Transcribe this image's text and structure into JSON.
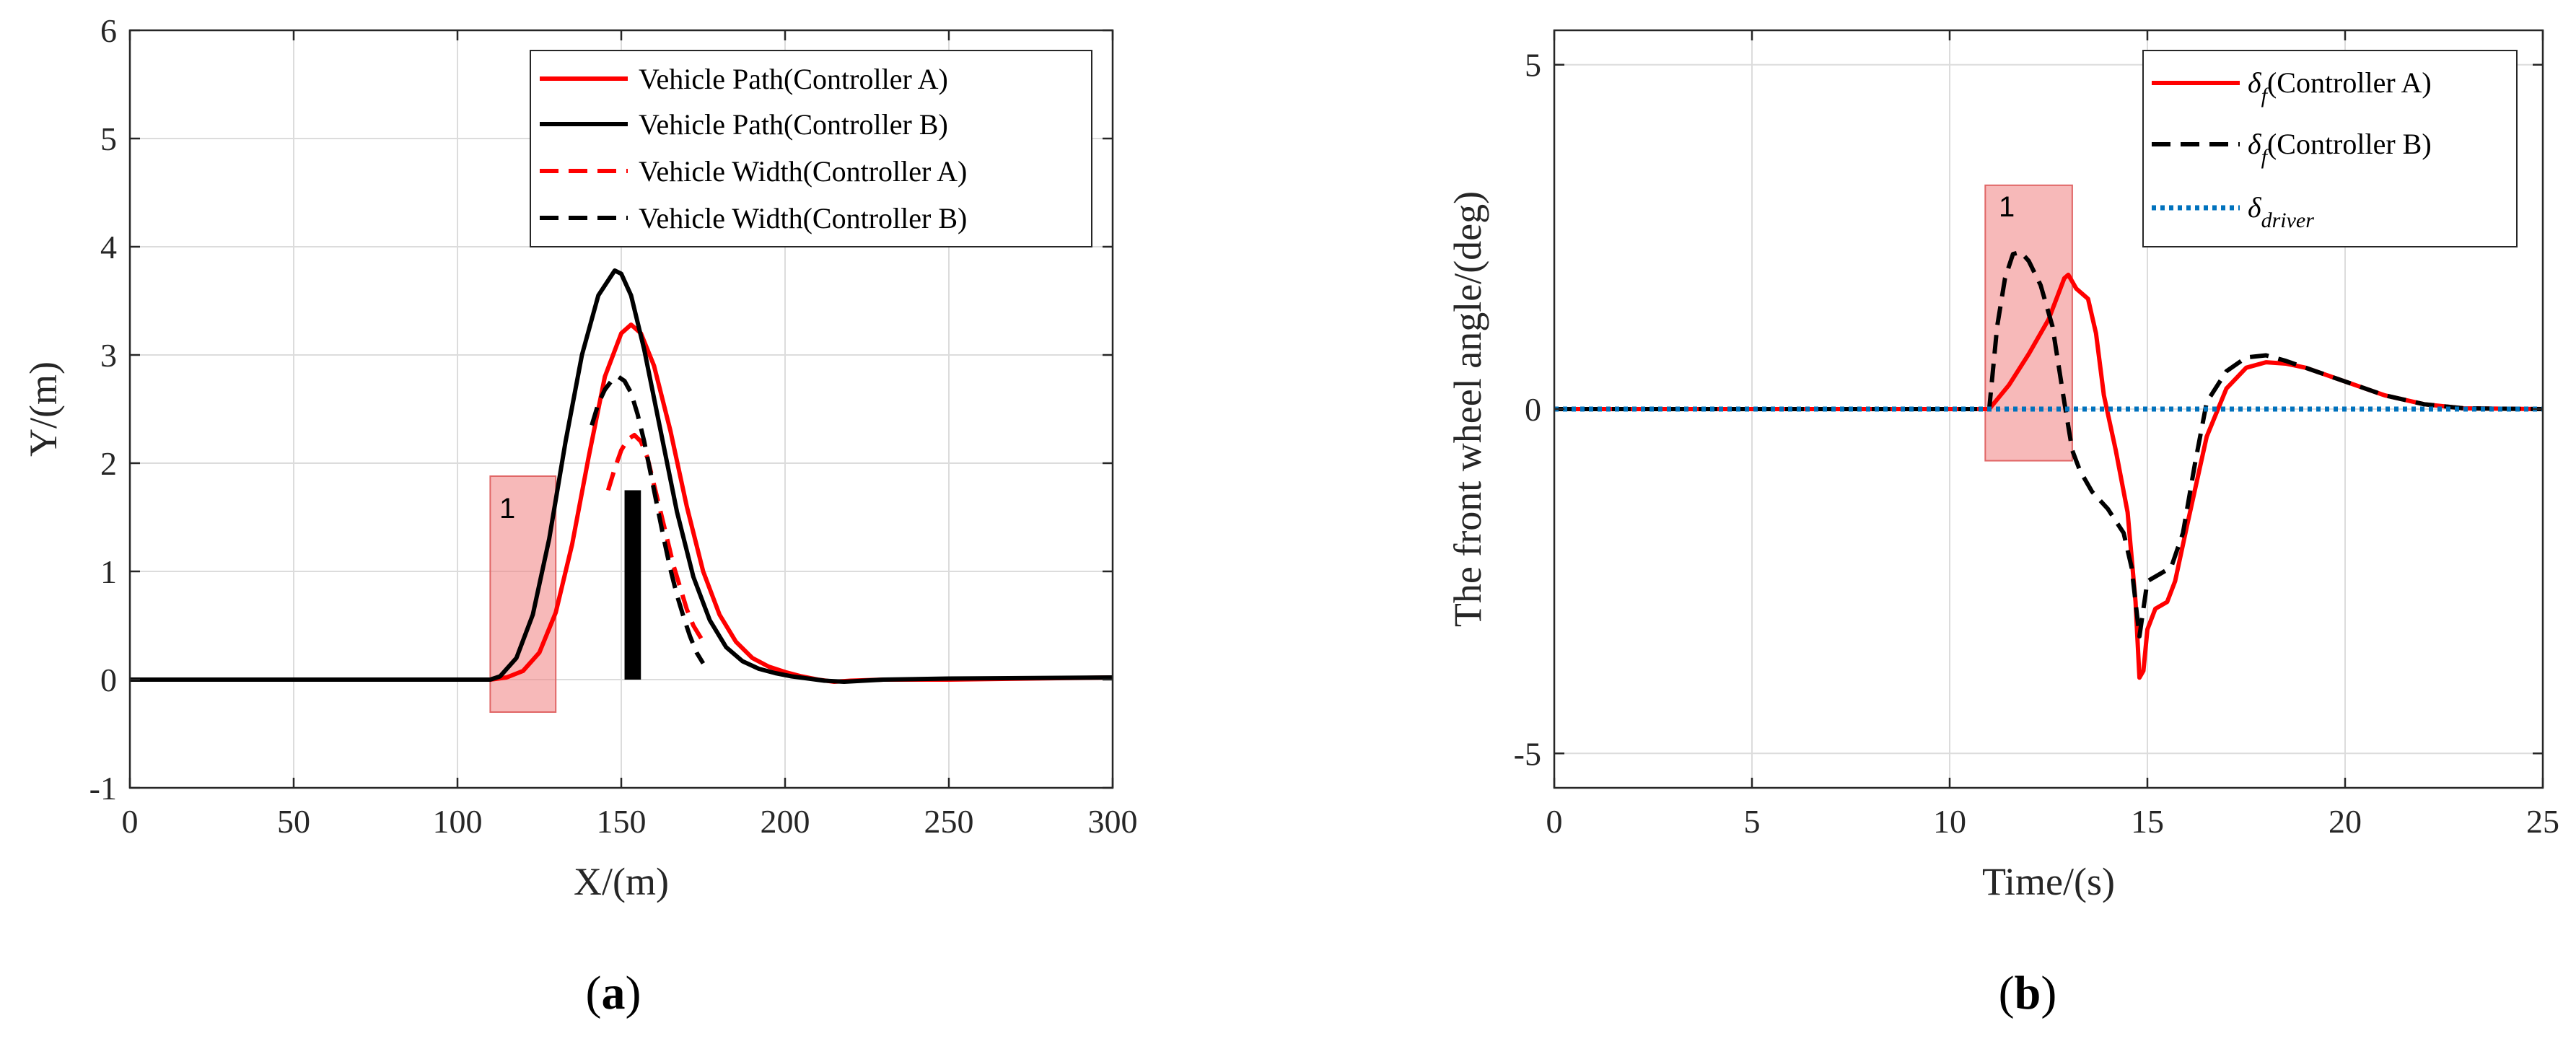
{
  "chart_data": [
    {
      "type": "line",
      "panel_label_pre": "(",
      "panel_label": "a",
      "panel_label_post": ")",
      "xlabel": "X/(m)",
      "ylabel": "Y/(m)",
      "xlim": [
        0,
        300
      ],
      "ylim": [
        -1,
        6
      ],
      "xticks": [
        "0",
        "50",
        "100",
        "150",
        "200",
        "250",
        "300"
      ],
      "yticks": [
        "-1",
        "0",
        "1",
        "2",
        "3",
        "4",
        "5",
        "6"
      ],
      "grid": true,
      "legend_position": "top-right",
      "series": [
        {
          "name": "Vehicle Path(Controller A)",
          "color": "#ff0000",
          "dash": "solid",
          "x": [
            0,
            100,
            110,
            115,
            120,
            125,
            130,
            135,
            140,
            145,
            150,
            153,
            156,
            160,
            165,
            170,
            175,
            180,
            185,
            190,
            195,
            200,
            205,
            210,
            215,
            220,
            230,
            250,
            300
          ],
          "y": [
            0,
            0,
            0,
            0.02,
            0.08,
            0.25,
            0.62,
            1.25,
            2.05,
            2.8,
            3.2,
            3.28,
            3.2,
            2.9,
            2.3,
            1.6,
            1.0,
            0.6,
            0.35,
            0.2,
            0.12,
            0.07,
            0.03,
            0.0,
            -0.02,
            -0.01,
            0.0,
            0.0,
            0.02
          ]
        },
        {
          "name": "Vehicle Path(Controller B)",
          "color": "#000000",
          "dash": "solid",
          "x": [
            0,
            100,
            110,
            113,
            118,
            123,
            128,
            133,
            138,
            143,
            148,
            150,
            153,
            157,
            162,
            167,
            172,
            177,
            182,
            187,
            192,
            197,
            202,
            207,
            212,
            218,
            230,
            250,
            300
          ],
          "y": [
            0,
            0,
            0,
            0.03,
            0.2,
            0.6,
            1.3,
            2.2,
            3.0,
            3.55,
            3.78,
            3.75,
            3.55,
            3.05,
            2.3,
            1.55,
            0.95,
            0.55,
            0.3,
            0.17,
            0.1,
            0.06,
            0.03,
            0.01,
            -0.01,
            -0.02,
            0.0,
            0.01,
            0.02
          ]
        },
        {
          "name": "Vehicle Width(Controller A)",
          "color": "#ff0000",
          "dash": "dashed",
          "x": [
            146,
            148,
            150,
            152,
            154,
            156,
            158,
            160,
            162,
            164,
            166,
            168,
            170,
            172,
            175
          ],
          "y": [
            1.75,
            1.95,
            2.12,
            2.22,
            2.26,
            2.2,
            2.05,
            1.8,
            1.55,
            1.3,
            1.05,
            0.85,
            0.65,
            0.5,
            0.35
          ]
        },
        {
          "name": "Vehicle Width(Controller B)",
          "color": "#000000",
          "dash": "dashed",
          "x": [
            141,
            143,
            145,
            147,
            149,
            151,
            153,
            155,
            157,
            159,
            161,
            163,
            165,
            167,
            169,
            171,
            173,
            175
          ],
          "y": [
            2.35,
            2.55,
            2.68,
            2.76,
            2.8,
            2.76,
            2.65,
            2.45,
            2.2,
            1.9,
            1.6,
            1.3,
            1.02,
            0.78,
            0.58,
            0.4,
            0.25,
            0.15
          ]
        }
      ],
      "obstacle": {
        "x0": 151,
        "x1": 156,
        "y0": 0,
        "y1": 1.75,
        "color": "#000000"
      },
      "highlight": {
        "label": "1",
        "x0": 110,
        "x1": 130,
        "y0": -0.3,
        "y1": 1.88,
        "color": "#f08080"
      }
    },
    {
      "type": "line",
      "panel_label_pre": "(",
      "panel_label": "b",
      "panel_label_post": ")",
      "xlabel": "Time/(s)",
      "ylabel": "The front wheel angle/(deg)",
      "xlim": [
        0,
        25
      ],
      "ylim": [
        -5.5,
        5.5
      ],
      "xticks": [
        "0",
        "5",
        "10",
        "15",
        "20",
        "25"
      ],
      "yticks": [
        "-5",
        "0",
        "5"
      ],
      "yticks_values": [
        -5,
        0,
        5
      ],
      "grid": true,
      "legend_position": "top-right",
      "series": [
        {
          "name": "(Controller A)",
          "symbol": "δ",
          "subscript": "f",
          "color": "#ff0000",
          "dash": "solid",
          "x": [
            0,
            11,
            11.5,
            12,
            12.5,
            12.9,
            13.0,
            13.1,
            13.2,
            13.5,
            13.7,
            13.9,
            14.2,
            14.5,
            14.7,
            14.8,
            14.9,
            15.0,
            15.2,
            15.5,
            15.7,
            16.0,
            16.5,
            17.0,
            17.5,
            18.0,
            18.5,
            19,
            20,
            21,
            22,
            23,
            25
          ],
          "y": [
            0,
            0,
            0.35,
            0.8,
            1.3,
            1.9,
            1.95,
            1.85,
            1.75,
            1.6,
            1.1,
            0.2,
            -0.6,
            -1.5,
            -2.8,
            -3.9,
            -3.8,
            -3.2,
            -2.9,
            -2.8,
            -2.5,
            -1.7,
            -0.4,
            0.3,
            0.6,
            0.68,
            0.66,
            0.6,
            0.4,
            0.2,
            0.07,
            0.01,
            0
          ]
        },
        {
          "name": "(Controller B)",
          "symbol": "δ",
          "subscript": "f",
          "color": "#000000",
          "dash": "dashed",
          "x": [
            0,
            11,
            11.2,
            11.4,
            11.6,
            11.8,
            12.0,
            12.3,
            12.6,
            12.9,
            13.1,
            13.3,
            13.6,
            14.0,
            14.4,
            14.6,
            14.8,
            15.0,
            15.3,
            15.6,
            15.9,
            16.2,
            16.5,
            17.0,
            17.5,
            18.0,
            18.5,
            19,
            20,
            21,
            22,
            23,
            25
          ],
          "y": [
            0,
            0,
            1.2,
            1.9,
            2.25,
            2.28,
            2.15,
            1.8,
            1.2,
            0.1,
            -0.6,
            -0.9,
            -1.2,
            -1.45,
            -1.8,
            -2.3,
            -3.3,
            -2.5,
            -2.4,
            -2.3,
            -1.8,
            -0.8,
            0.1,
            0.55,
            0.75,
            0.78,
            0.7,
            0.6,
            0.4,
            0.2,
            0.07,
            0.01,
            0
          ]
        },
        {
          "name": "",
          "symbol": "δ",
          "subscript": "driver",
          "color": "#0072bd",
          "dash": "dotted",
          "x": [
            0,
            25
          ],
          "y": [
            0,
            0
          ]
        }
      ],
      "highlight": {
        "label": "1",
        "x0": 10.9,
        "x1": 13.1,
        "y0": -0.75,
        "y1": 3.25,
        "color": "#f08080"
      }
    }
  ]
}
